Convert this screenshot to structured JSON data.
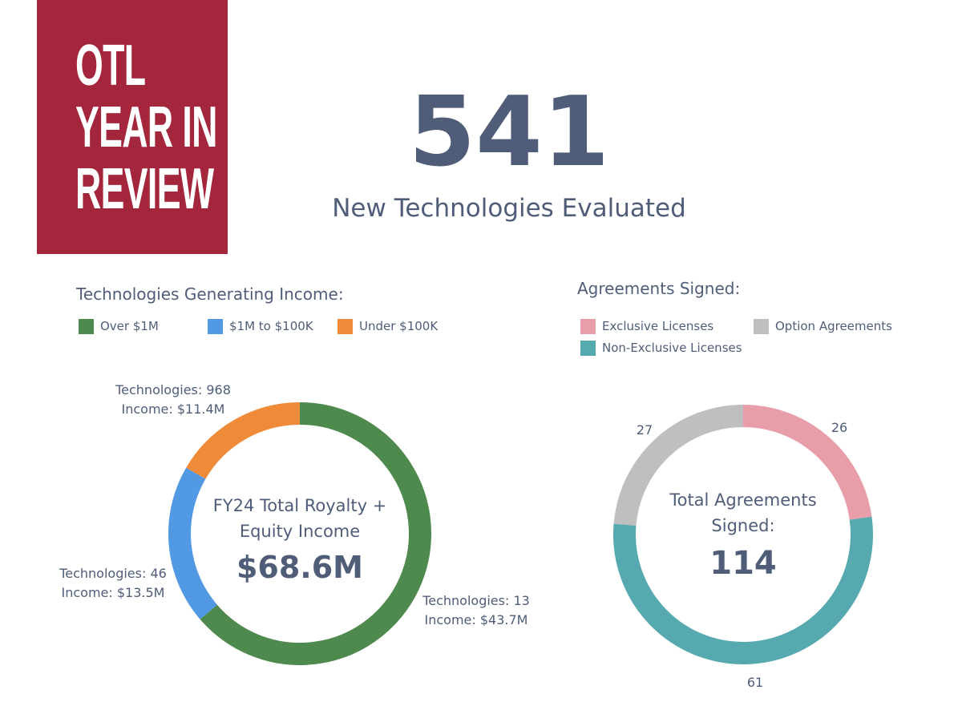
{
  "logo": {
    "lines": [
      "OTL",
      "YEAR IN",
      "REVIEW"
    ]
  },
  "headline": {
    "value": "541",
    "caption": "New Technologies Evaluated"
  },
  "income": {
    "title": "Technologies Generating Income:",
    "legend": [
      {
        "label": "Over $1M",
        "color": "#4e8a4e"
      },
      {
        "label": "$1M to $100K",
        "color": "#5199e3"
      },
      {
        "label": "Under $100K",
        "color": "#ee8a38"
      }
    ],
    "center_lines": [
      "FY24 Total Royalty +",
      "Equity Income"
    ],
    "center_value": "$68.6M"
  },
  "agreements": {
    "title": "Agreements Signed:",
    "legend": [
      {
        "label": "Exclusive Licenses",
        "color": "#e89ea8"
      },
      {
        "label": "Option Agreements",
        "color": "#bfbfbf"
      },
      {
        "label": "Non-Exclusive Licenses",
        "color": "#56a9ae"
      }
    ],
    "center_lines": [
      "Total Agreements",
      "Signed:"
    ],
    "center_value": "114"
  },
  "chart_data": [
    {
      "type": "pie",
      "donut": true,
      "title": "FY24 Total Royalty + Equity Income",
      "categories": [
        "Over $1M",
        "$1M to $100K",
        "Under $100K"
      ],
      "values": [
        43.7,
        13.5,
        11.4
      ],
      "technologies": [
        13,
        46,
        968
      ],
      "labels": [
        [
          "Technologies: 13",
          "Income: $43.7M"
        ],
        [
          "Technologies: 46",
          "Income: $13.5M"
        ],
        [
          "Technologies: 968",
          "Income: $11.4M"
        ]
      ],
      "colors": [
        "#4e8a4e",
        "#5199e3",
        "#ee8a38"
      ]
    },
    {
      "type": "pie",
      "donut": true,
      "title": "Total Agreements Signed",
      "categories": [
        "Exclusive Licenses",
        "Non-Exclusive Licenses",
        "Option Agreements"
      ],
      "values": [
        26,
        61,
        27
      ],
      "labels": [
        "26",
        "61",
        "27"
      ],
      "colors": [
        "#e89ea8",
        "#56a9ae",
        "#bfbfbf"
      ]
    }
  ]
}
